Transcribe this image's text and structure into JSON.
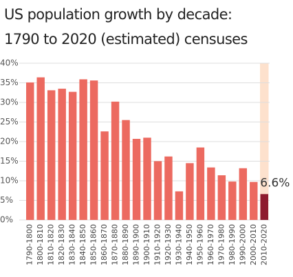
{
  "chart_data": {
    "type": "bar",
    "title": [
      "US population growth by decade:",
      "1790 to 2020 (estimated) censuses"
    ],
    "categories": [
      "1790-1800",
      "1800-1810",
      "1810-1820",
      "1820-1830",
      "1830-1840",
      "1840-1850",
      "1850-1860",
      "1860-1870",
      "1870-1880",
      "1880-1890",
      "1890-1900",
      "1900-1910",
      "1910-1920",
      "1920-1930",
      "1930-1940",
      "1940-1950",
      "1950-1960",
      "1960-1970",
      "1970-1980",
      "1980-1990",
      "1990-2000",
      "2000-2010",
      "2010-2020"
    ],
    "values": [
      35.1,
      36.4,
      33.1,
      33.5,
      32.7,
      35.9,
      35.6,
      22.6,
      30.2,
      25.5,
      20.7,
      21.0,
      15.0,
      16.2,
      7.3,
      14.5,
      18.5,
      13.4,
      11.4,
      9.8,
      13.2,
      9.7,
      6.6
    ],
    "value_labels": [
      null,
      null,
      null,
      null,
      null,
      null,
      null,
      null,
      null,
      null,
      null,
      null,
      null,
      null,
      null,
      null,
      null,
      null,
      null,
      null,
      null,
      null,
      "6.6%"
    ],
    "color": "#ec6a60",
    "highlight_color": "#8e1b2e",
    "highlight_band_color": "#fde1cd",
    "ylim": [
      0,
      40
    ],
    "yticks": [
      {
        "value": 0,
        "label": "0%"
      },
      {
        "value": 5,
        "label": "5%"
      },
      {
        "value": 10,
        "label": "10%"
      },
      {
        "value": 15,
        "label": "15%"
      },
      {
        "value": 20,
        "label": "20%"
      },
      {
        "value": 25,
        "label": "25%"
      },
      {
        "value": 30,
        "label": "30%"
      },
      {
        "value": 35,
        "label": "35%"
      },
      {
        "value": 40,
        "label": "40%"
      }
    ],
    "grid": true
  }
}
